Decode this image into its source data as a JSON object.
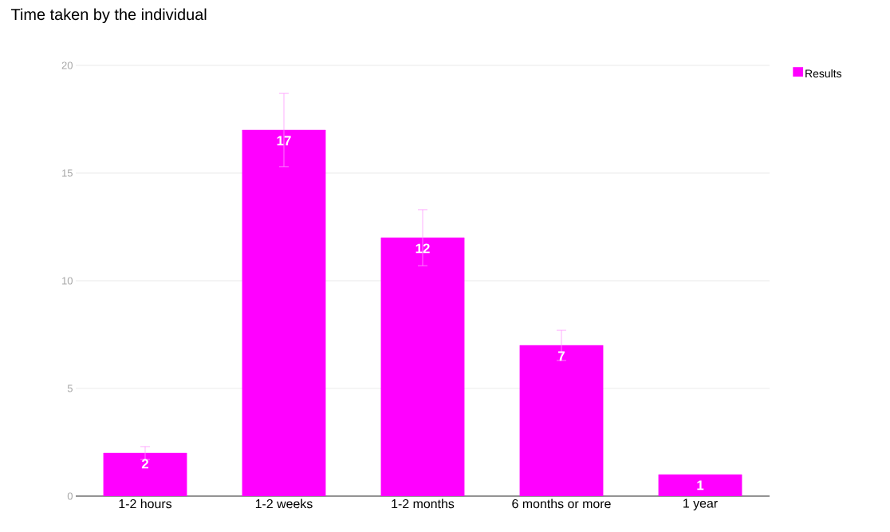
{
  "chart_data": {
    "type": "bar",
    "title": "Time taken by the individual",
    "categories": [
      "1-2 hours",
      "1-2 weeks",
      "1-2 months",
      "6 months or more",
      "1 year"
    ],
    "series": [
      {
        "name": "Results",
        "color": "#ff00ff",
        "values": [
          2,
          17,
          12,
          7,
          1
        ],
        "errors": [
          0.3,
          1.7,
          1.3,
          0.7,
          null
        ]
      }
    ],
    "ylim": [
      0,
      20
    ],
    "yticks": [
      0,
      5,
      10,
      15,
      20
    ],
    "grid": "y",
    "legend": "top right",
    "data_labels": true
  }
}
